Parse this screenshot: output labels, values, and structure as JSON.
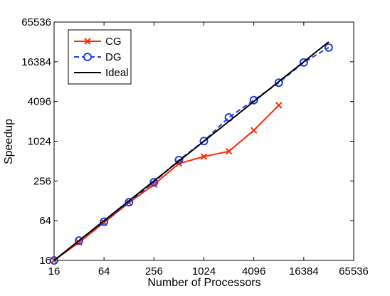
{
  "chart_data": {
    "type": "line",
    "xlabel": "Number of Processors",
    "ylabel": "Speedup",
    "xscale": "log2",
    "yscale": "log2",
    "xlim": [
      16,
      65536
    ],
    "ylim": [
      16,
      65536
    ],
    "x_ticks": [
      16,
      64,
      256,
      1024,
      4096,
      16384,
      65536
    ],
    "y_ticks": [
      16,
      64,
      256,
      1024,
      4096,
      16384,
      65536
    ],
    "grid": false,
    "legend_position": "top-left",
    "series": [
      {
        "name": "CG",
        "color": "#ff2a00",
        "marker": "x",
        "line": "solid",
        "x": [
          16,
          32,
          64,
          128,
          256,
          512,
          1024,
          2048,
          4096,
          8192
        ],
        "y": [
          16,
          30,
          60,
          120,
          225,
          470,
          600,
          720,
          1500,
          3600
        ]
      },
      {
        "name": "DG",
        "color": "#1f3fe0",
        "marker": "o",
        "line": "dashed",
        "x": [
          16,
          32,
          64,
          128,
          256,
          512,
          1024,
          2048,
          4096,
          8192,
          16384,
          32768
        ],
        "y": [
          16,
          32,
          62,
          122,
          245,
          530,
          1030,
          2350,
          4300,
          7900,
          16000,
          27000
        ]
      },
      {
        "name": "Ideal",
        "color": "#000000",
        "marker": "none",
        "line": "solid",
        "x": [
          16,
          32768
        ],
        "y": [
          16,
          32768
        ]
      }
    ]
  }
}
